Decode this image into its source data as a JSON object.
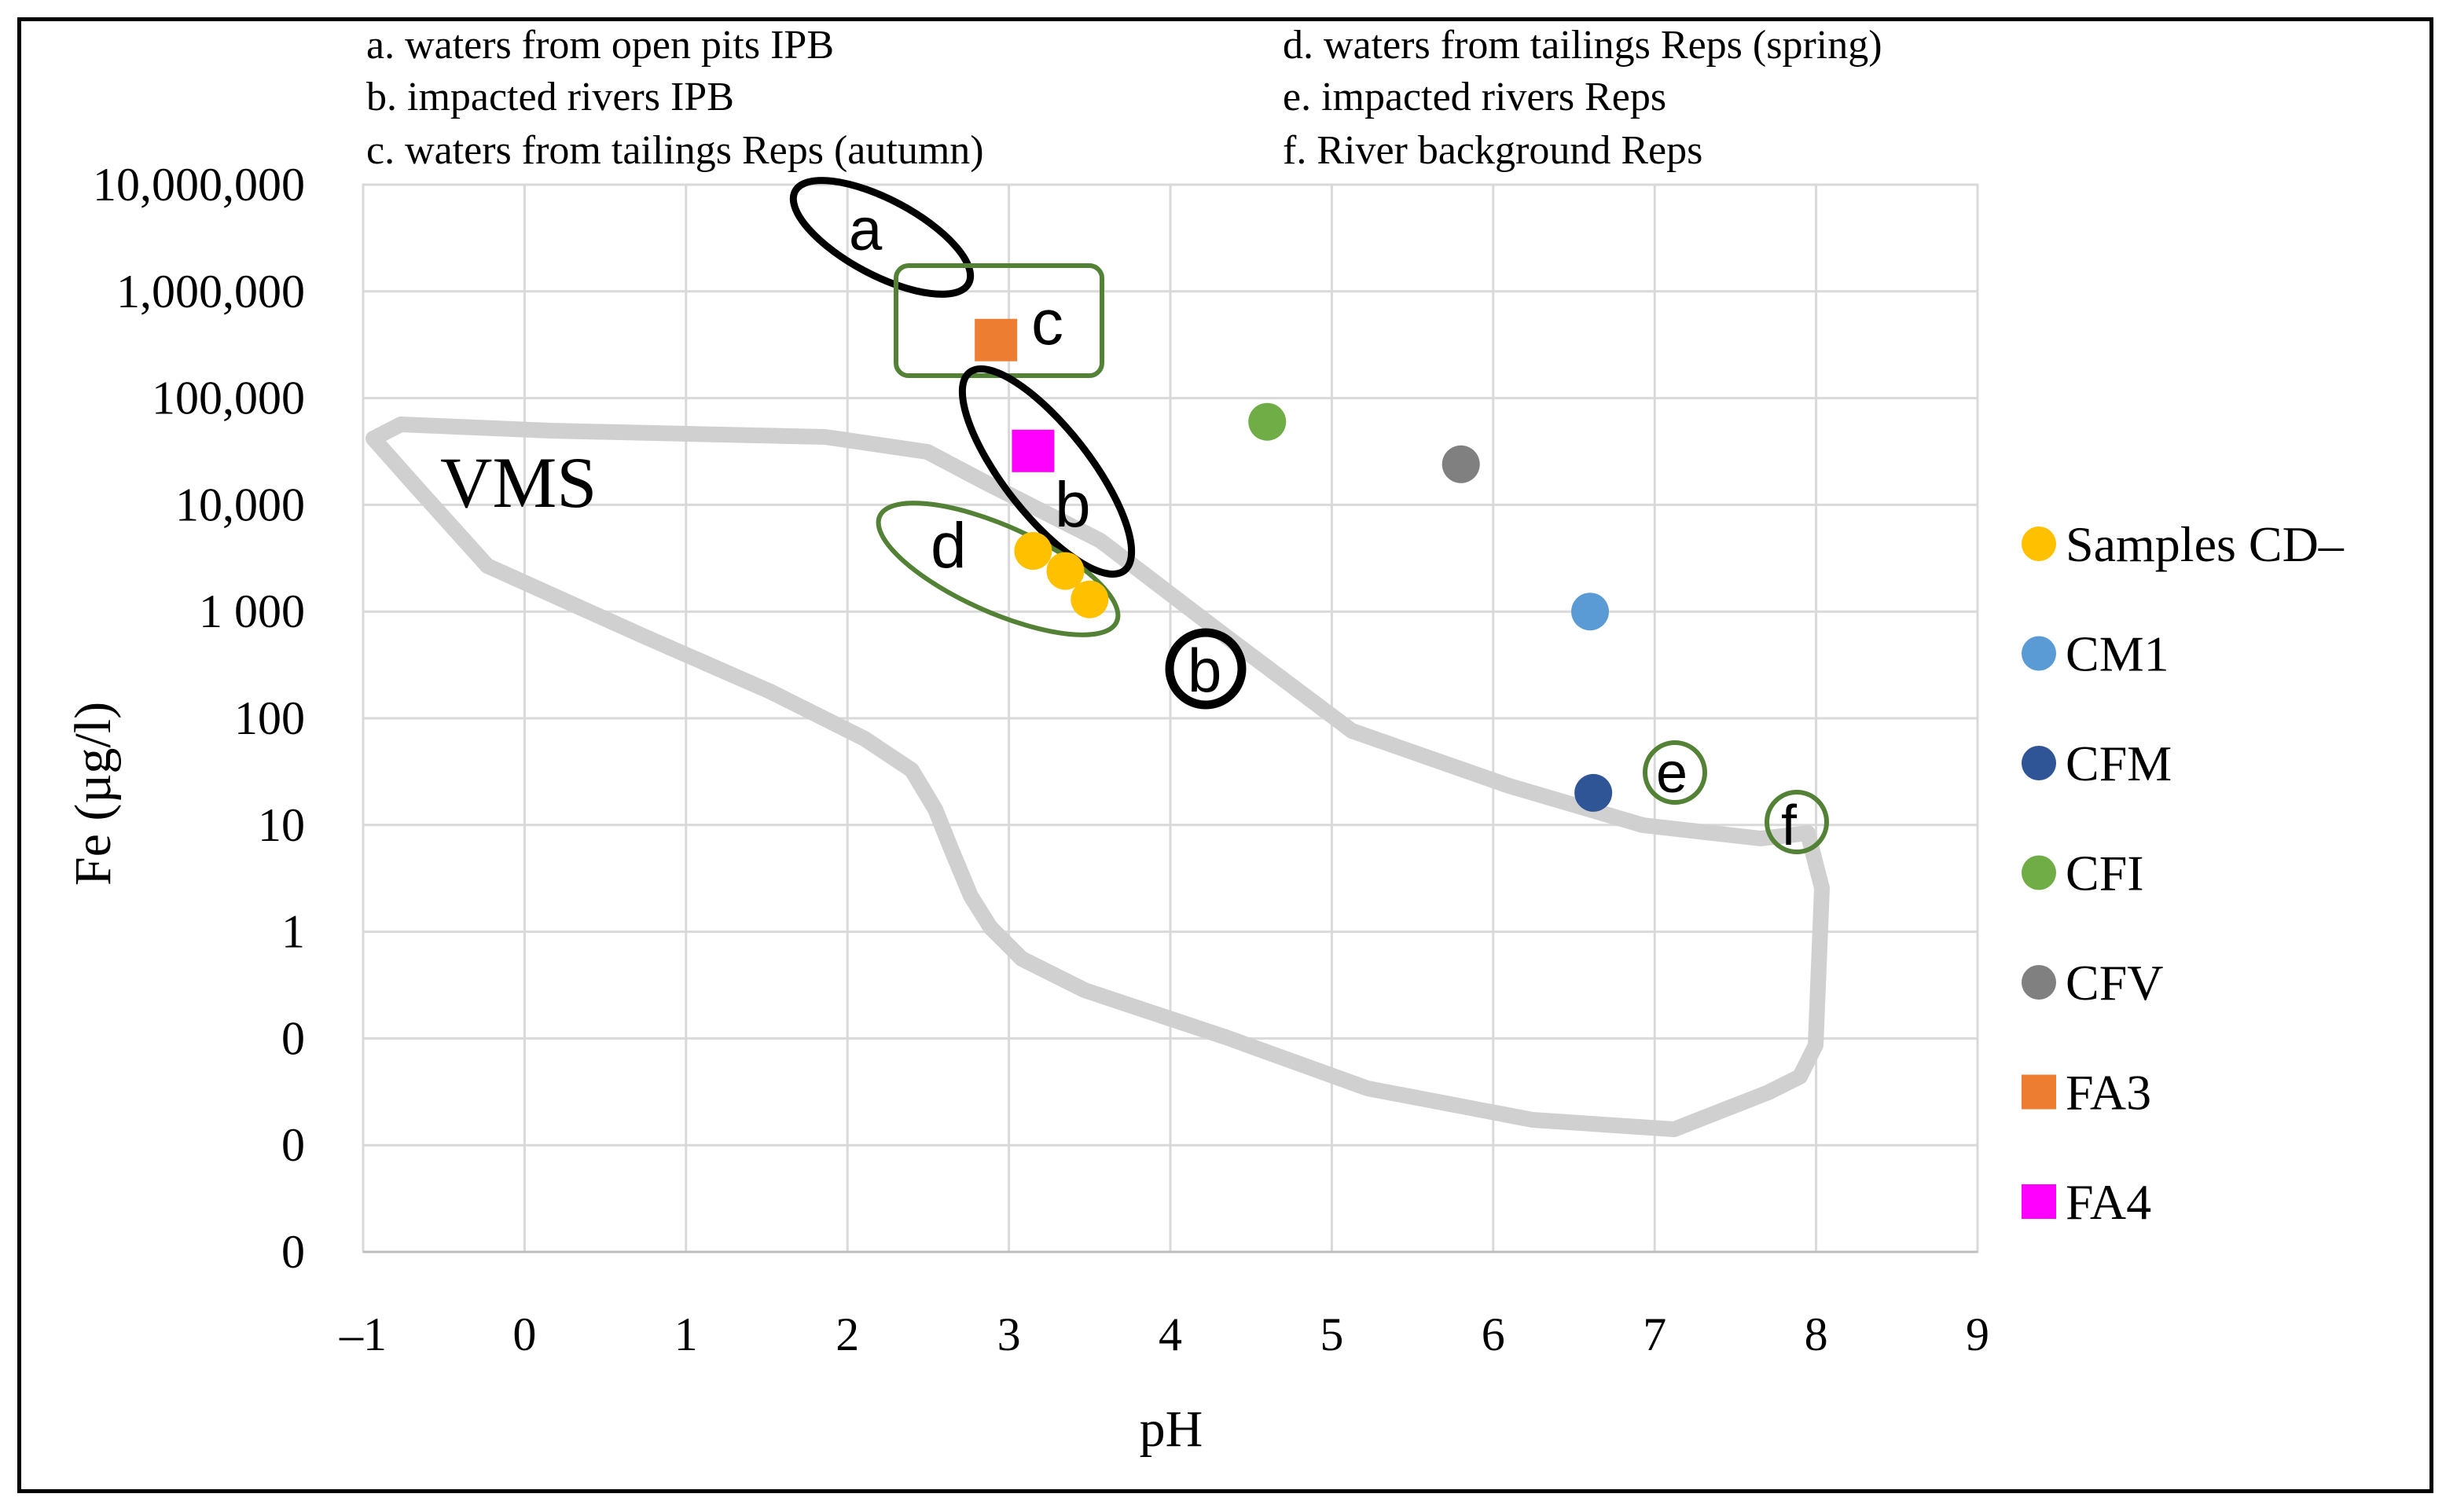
{
  "chart_data": {
    "type": "scatter",
    "title": "",
    "xlabel": "pH",
    "ylabel": "Fe (µg/l)",
    "xlim": [
      -1,
      9
    ],
    "ylim_log10": [
      -3,
      7
    ],
    "x_ticks": [
      "–1",
      "0",
      "1",
      "2",
      "3",
      "4",
      "5",
      "6",
      "7",
      "8",
      "9"
    ],
    "y_ticks": [
      "0",
      "0",
      "0",
      "1",
      "10",
      "100",
      "1 000",
      "10,000",
      "100,000",
      "1,000,000",
      "10,000,000"
    ],
    "notes": [
      "a. waters from open pits IPB",
      "b. impacted rivers IPB",
      "c. waters from tailings Reps (autumn)",
      "d. waters from tailings Reps (spring)",
      "e. impacted rivers Reps",
      "f. River background Reps"
    ],
    "region_labels": {
      "vms": "VMS",
      "a": "a",
      "b": "b",
      "b2": "b",
      "c": "c",
      "d": "d",
      "e": "e",
      "f": "f"
    },
    "series": [
      {
        "name": "Samples CD–",
        "color": "#FFC000",
        "marker": "circle",
        "points": [
          [
            3.15,
            3700
          ],
          [
            3.35,
            2400
          ],
          [
            3.5,
            1300
          ]
        ]
      },
      {
        "name": "CM1",
        "color": "#5B9BD5",
        "marker": "circle",
        "points": [
          [
            6.6,
            1000
          ]
        ]
      },
      {
        "name": "CFM",
        "color": "#2F5597",
        "marker": "circle",
        "points": [
          [
            6.62,
            20
          ]
        ]
      },
      {
        "name": "CFI",
        "color": "#70AD47",
        "marker": "circle",
        "points": [
          [
            4.6,
            60000
          ]
        ]
      },
      {
        "name": "CFV",
        "color": "#808080",
        "marker": "circle",
        "points": [
          [
            5.8,
            24000
          ]
        ]
      },
      {
        "name": "FA3",
        "color": "#ED7D31",
        "marker": "square",
        "points": [
          [
            2.92,
            350000
          ]
        ]
      },
      {
        "name": "FA4",
        "color": "#FF00FF",
        "marker": "square",
        "points": [
          [
            3.15,
            32000
          ]
        ]
      }
    ]
  }
}
